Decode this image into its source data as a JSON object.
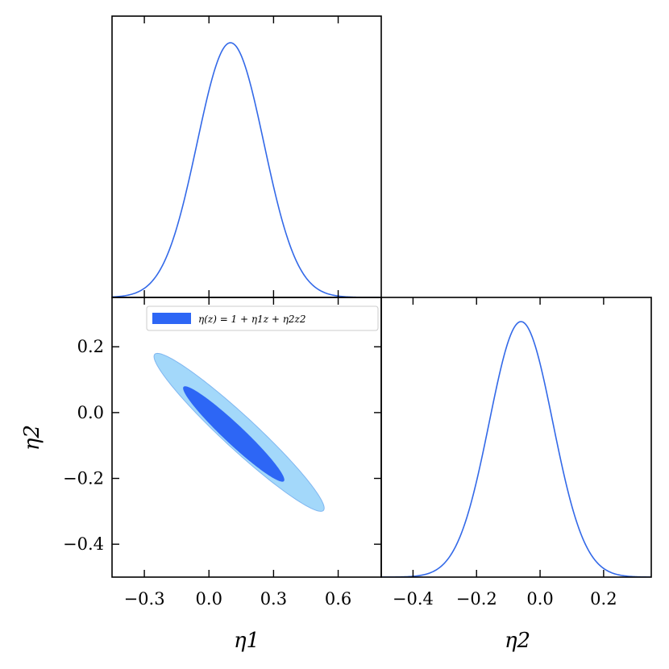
{
  "chart_data": {
    "type": "triangle",
    "parameters": [
      "η1",
      "η2"
    ],
    "legend": {
      "entries": [
        {
          "label": "η(z) = 1 + η1z + η2z2",
          "color": "#2d66f5",
          "placement": "upper-right of joint panel"
        }
      ]
    },
    "colors": {
      "line": "#3369e8",
      "contour_68": "#2d66f5",
      "contour_95": "#a3d8fa",
      "contour_95_edge": "#7fb6f0"
    },
    "marginal_eta1": {
      "type": "line",
      "xlim": [
        -0.45,
        0.8
      ],
      "peak": 0.1,
      "sigma": 0.155,
      "ticks": [
        -0.3,
        0.0,
        0.3,
        0.6
      ]
    },
    "marginal_eta2": {
      "type": "line",
      "xlim": [
        -0.5,
        0.35
      ],
      "peak": -0.06,
      "sigma": 0.1,
      "ticks": [
        -0.4,
        -0.2,
        0.0,
        0.2
      ],
      "tick_labels": [
        "−0.4",
        "−0.2",
        "0.0",
        "0.2"
      ],
      "xlabel": "η2"
    },
    "joint": {
      "type": "contour",
      "xlim": [
        -0.45,
        0.8
      ],
      "ylim": [
        -0.5,
        0.35
      ],
      "x_ticks": [
        -0.3,
        0.0,
        0.3,
        0.6
      ],
      "x_tick_labels": [
        "−0.3",
        "0.0",
        "0.3",
        "0.6"
      ],
      "y_ticks": [
        -0.4,
        -0.2,
        0.0,
        0.2
      ],
      "y_tick_labels": [
        "−0.4",
        "−0.2",
        "0.0",
        "0.2"
      ],
      "xlabel": "η1",
      "ylabel": "η2",
      "contour_68": {
        "center": [
          0.115,
          -0.065
        ],
        "extent_x": [
          -0.12,
          0.35
        ],
        "extent_y": [
          -0.21,
          0.08
        ]
      },
      "contour_95": {
        "center": [
          0.14,
          -0.06
        ],
        "extent_x": [
          -0.25,
          0.54
        ],
        "extent_y": [
          -0.3,
          0.18
        ]
      }
    }
  }
}
